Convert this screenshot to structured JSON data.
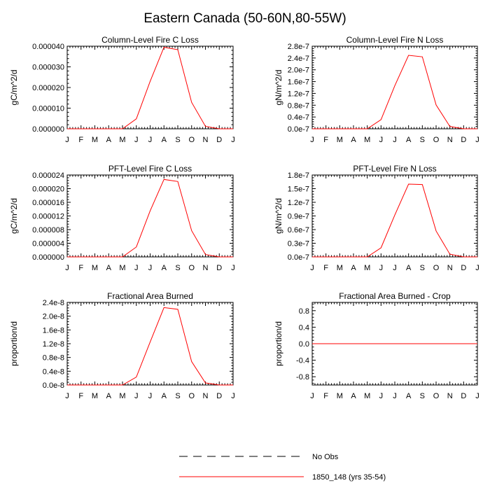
{
  "title": "Eastern Canada (50-60N,80-55W)",
  "legend": {
    "placement": "bottom-center",
    "entries": [
      {
        "label": "No Obs",
        "color": "#000000",
        "style": "dashed"
      },
      {
        "label": "1850_148 (yrs 35-54)",
        "color": "#ff0000",
        "style": "solid"
      }
    ]
  },
  "chart_data": [
    {
      "type": "line",
      "title": "Column-Level Fire C Loss",
      "ylabel": "gC/m^2/d",
      "x": [
        "J",
        "F",
        "M",
        "A",
        "M",
        "J",
        "J",
        "A",
        "S",
        "O",
        "N",
        "D",
        "J"
      ],
      "ylim": [
        0,
        4e-05
      ],
      "yticks": [
        0,
        1e-05,
        2e-05,
        3e-05,
        4e-05
      ],
      "ytick_labels": [
        "0.000000",
        "0.000010",
        "0.000020",
        "0.000030",
        "0.000040"
      ],
      "grid": false,
      "series": [
        {
          "color": "#ff0000",
          "values": [
            0,
            0,
            0,
            0,
            0,
            4.8e-06,
            2.3e-05,
            3.95e-05,
            3.83e-05,
            1.28e-05,
            1.2e-06,
            0,
            0
          ]
        }
      ]
    },
    {
      "type": "line",
      "title": "Column-Level Fire N Loss",
      "ylabel": "gN/m^2/d",
      "x": [
        "J",
        "F",
        "M",
        "A",
        "M",
        "J",
        "J",
        "A",
        "S",
        "O",
        "N",
        "D",
        "J"
      ],
      "ylim": [
        0,
        2.8e-07
      ],
      "yticks": [
        0,
        4e-08,
        8e-08,
        1.2e-07,
        1.6e-07,
        2e-07,
        2.4e-07,
        2.8e-07
      ],
      "ytick_labels": [
        "0.0e-7",
        "0.4e-7",
        "0.8e-7",
        "1.2e-7",
        "1.6e-7",
        "2.0e-7",
        "2.4e-7",
        "2.8e-7"
      ],
      "grid": false,
      "series": [
        {
          "color": "#ff0000",
          "values": [
            0,
            0,
            0,
            0,
            0,
            3.1e-08,
            1.46e-07,
            2.49e-07,
            2.44e-07,
            8.1e-08,
            8e-09,
            0,
            0
          ]
        }
      ]
    },
    {
      "type": "line",
      "title": "PFT-Level Fire C Loss",
      "ylabel": "gC/m^2/d",
      "x": [
        "J",
        "F",
        "M",
        "A",
        "M",
        "J",
        "J",
        "A",
        "S",
        "O",
        "N",
        "D",
        "J"
      ],
      "ylim": [
        0,
        2.4e-05
      ],
      "yticks": [
        0,
        4e-06,
        8e-06,
        1.2e-05,
        1.6e-05,
        2e-05,
        2.4e-05
      ],
      "ytick_labels": [
        "0.000000",
        "0.000004",
        "0.000008",
        "0.000012",
        "0.000016",
        "0.000020",
        "0.000024"
      ],
      "grid": false,
      "series": [
        {
          "color": "#ff0000",
          "values": [
            0,
            0,
            0,
            0,
            0,
            2.9e-06,
            1.35e-05,
            2.27e-05,
            2.21e-05,
            7.7e-06,
            7e-07,
            0,
            0
          ]
        }
      ]
    },
    {
      "type": "line",
      "title": "PFT-Level Fire N Loss",
      "ylabel": "gN/m^2/d",
      "x": [
        "J",
        "F",
        "M",
        "A",
        "M",
        "J",
        "J",
        "A",
        "S",
        "O",
        "N",
        "D",
        "J"
      ],
      "ylim": [
        0,
        1.8e-07
      ],
      "yticks": [
        0,
        3e-08,
        6e-08,
        9e-08,
        1.2e-07,
        1.5e-07,
        1.8e-07
      ],
      "ytick_labels": [
        "0.0e-7",
        "0.3e-7",
        "0.6e-7",
        "0.9e-7",
        "1.2e-7",
        "1.5e-7",
        "1.8e-7"
      ],
      "grid": false,
      "series": [
        {
          "color": "#ff0000",
          "values": [
            0,
            0,
            0,
            0,
            0,
            2e-08,
            9.2e-08,
            1.6e-07,
            1.59e-07,
            5.7e-08,
            6e-09,
            0,
            0
          ]
        }
      ]
    },
    {
      "type": "line",
      "title": "Fractional Area Burned",
      "ylabel": "proportion/d",
      "x": [
        "J",
        "F",
        "M",
        "A",
        "M",
        "J",
        "J",
        "A",
        "S",
        "O",
        "N",
        "D",
        "J"
      ],
      "ylim": [
        0,
        2.4e-08
      ],
      "yticks": [
        0,
        4e-09,
        8e-09,
        1.2e-08,
        1.6e-08,
        2e-08,
        2.4e-08
      ],
      "ytick_labels": [
        "0.0e-8",
        "0.4e-8",
        "0.8e-8",
        "1.2e-8",
        "1.6e-8",
        "2.0e-8",
        "2.4e-8"
      ],
      "grid": false,
      "series": [
        {
          "color": "#ff0000",
          "values": [
            0,
            0,
            0,
            0,
            0,
            2.3e-09,
            1.25e-08,
            2.25e-08,
            2.2e-08,
            6.8e-09,
            6e-10,
            0,
            0
          ]
        }
      ]
    },
    {
      "type": "line",
      "title": "Fractional Area Burned - Crop",
      "ylabel": "proportion/d",
      "x": [
        "J",
        "F",
        "M",
        "A",
        "M",
        "J",
        "J",
        "A",
        "S",
        "O",
        "N",
        "D",
        "J"
      ],
      "ylim": [
        -1.0,
        1.0
      ],
      "yticks": [
        -0.8,
        -0.4,
        0.0,
        0.4,
        0.8
      ],
      "ytick_labels": [
        "-0.8",
        "-0.4",
        "0.0",
        "0.4",
        "0.8"
      ],
      "grid": false,
      "series": [
        {
          "color": "#ff0000",
          "values": [
            0,
            0,
            0,
            0,
            0,
            0,
            0,
            0,
            0,
            0,
            0,
            0,
            0
          ]
        }
      ]
    }
  ]
}
